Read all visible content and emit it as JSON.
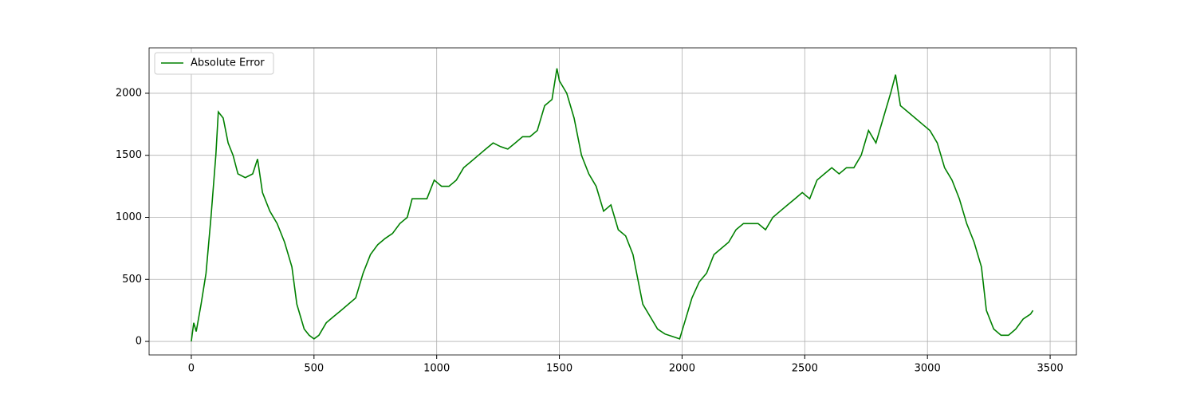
{
  "chart_data": {
    "type": "line",
    "x": [
      0,
      10,
      20,
      40,
      60,
      80,
      100,
      110,
      130,
      150,
      170,
      190,
      220,
      250,
      270,
      290,
      320,
      350,
      380,
      410,
      430,
      460,
      480,
      500,
      520,
      550,
      580,
      610,
      640,
      670,
      700,
      730,
      760,
      790,
      820,
      850,
      880,
      900,
      930,
      960,
      990,
      1020,
      1050,
      1080,
      1110,
      1140,
      1170,
      1200,
      1230,
      1260,
      1290,
      1320,
      1350,
      1380,
      1410,
      1440,
      1470,
      1490,
      1500,
      1530,
      1560,
      1590,
      1620,
      1650,
      1680,
      1710,
      1740,
      1770,
      1800,
      1820,
      1840,
      1870,
      1900,
      1930,
      1960,
      1990,
      2010,
      2040,
      2070,
      2100,
      2130,
      2160,
      2190,
      2220,
      2250,
      2280,
      2310,
      2340,
      2370,
      2400,
      2430,
      2460,
      2490,
      2520,
      2550,
      2580,
      2610,
      2640,
      2670,
      2700,
      2730,
      2760,
      2790,
      2820,
      2850,
      2870,
      2890,
      2920,
      2950,
      2980,
      3010,
      3040,
      3070,
      3100,
      3130,
      3160,
      3190,
      3220,
      3240,
      3270,
      3300,
      3330,
      3360,
      3390,
      3420,
      3430
    ],
    "series": [
      {
        "name": "Absolute Error",
        "color": "#008000",
        "values": [
          0,
          150,
          80,
          300,
          550,
          1000,
          1500,
          1850,
          1800,
          1600,
          1500,
          1350,
          1320,
          1350,
          1470,
          1200,
          1050,
          950,
          800,
          600,
          300,
          100,
          50,
          20,
          50,
          150,
          200,
          250,
          300,
          350,
          550,
          700,
          780,
          830,
          870,
          950,
          1000,
          1150,
          1150,
          1150,
          1300,
          1250,
          1250,
          1300,
          1400,
          1450,
          1500,
          1550,
          1600,
          1570,
          1550,
          1600,
          1650,
          1650,
          1700,
          1900,
          1950,
          2200,
          2100,
          2000,
          1800,
          1500,
          1350,
          1250,
          1050,
          1100,
          900,
          850,
          700,
          500,
          300,
          200,
          100,
          60,
          40,
          20,
          150,
          350,
          480,
          550,
          700,
          750,
          800,
          900,
          950,
          950,
          950,
          900,
          1000,
          1050,
          1100,
          1150,
          1200,
          1150,
          1300,
          1350,
          1400,
          1350,
          1400,
          1400,
          1500,
          1700,
          1600,
          1800,
          2000,
          2150,
          1900,
          1850,
          1800,
          1750,
          1700,
          1600,
          1400,
          1300,
          1150,
          950,
          800,
          600,
          250,
          100,
          50,
          50,
          100,
          180,
          220,
          250
        ]
      }
    ],
    "xlim": [
      -172,
      3607
    ],
    "ylim": [
      -109,
      2366
    ],
    "xticks": [
      0,
      500,
      1000,
      1500,
      2000,
      2500,
      3000,
      3500
    ],
    "yticks": [
      0,
      500,
      1000,
      1500,
      2000
    ],
    "grid": true,
    "legend": "upper left"
  }
}
